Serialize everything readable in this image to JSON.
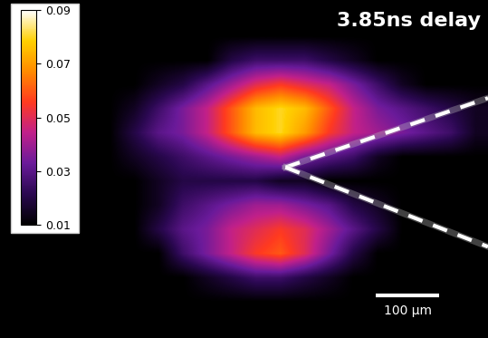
{
  "chart_data": {
    "type": "heatmap",
    "title": "3.85ns delay",
    "xlim": [
      0,
      770
    ],
    "ylim": [
      0,
      533
    ],
    "tick_labels": false,
    "cells": [
      [
        0.01,
        0.01,
        0.01,
        0.01,
        0.01,
        0.01,
        0.01,
        0.01,
        0.01,
        0.01,
        0.01,
        0.01,
        0.01,
        0.01,
        0.01,
        0.01,
        0.01,
        0.01,
        0.01,
        0.01
      ],
      [
        0.01,
        0.01,
        0.01,
        0.01,
        0.01,
        0.01,
        0.01,
        0.01,
        0.01,
        0.01,
        0.01,
        0.01,
        0.01,
        0.01,
        0.01,
        0.01,
        0.01,
        0.01,
        0.01,
        0.01
      ],
      [
        0.01,
        0.01,
        0.01,
        0.01,
        0.01,
        0.01,
        0.01,
        0.01,
        0.01,
        0.02,
        0.025,
        0.025,
        0.025,
        0.02,
        0.015,
        0.01,
        0.01,
        0.01,
        0.01,
        0.01
      ],
      [
        0.01,
        0.01,
        0.01,
        0.01,
        0.01,
        0.01,
        0.015,
        0.02,
        0.03,
        0.04,
        0.05,
        0.055,
        0.05,
        0.045,
        0.035,
        0.025,
        0.015,
        0.01,
        0.01,
        0.01
      ],
      [
        0.01,
        0.01,
        0.01,
        0.01,
        0.01,
        0.015,
        0.025,
        0.035,
        0.045,
        0.06,
        0.075,
        0.08,
        0.075,
        0.06,
        0.045,
        0.035,
        0.03,
        0.025,
        0.02,
        0.015
      ],
      [
        0.01,
        0.01,
        0.01,
        0.01,
        0.01,
        0.02,
        0.03,
        0.035,
        0.045,
        0.06,
        0.075,
        0.08,
        0.07,
        0.055,
        0.045,
        0.04,
        0.035,
        0.03,
        0.025,
        0.015
      ],
      [
        0.01,
        0.01,
        0.01,
        0.01,
        0.01,
        0.015,
        0.02,
        0.025,
        0.03,
        0.035,
        0.04,
        0.045,
        0.035,
        0.03,
        0.025,
        0.015,
        0.01,
        0.01,
        0.01,
        0.01
      ],
      [
        0.01,
        0.01,
        0.01,
        0.01,
        0.01,
        0.01,
        0.015,
        0.02,
        0.02,
        0.02,
        0.02,
        0.015,
        0.015,
        0.01,
        0.01,
        0.01,
        0.01,
        0.01,
        0.01,
        0.01
      ],
      [
        0.01,
        0.01,
        0.01,
        0.01,
        0.01,
        0.01,
        0.015,
        0.025,
        0.03,
        0.035,
        0.04,
        0.04,
        0.035,
        0.03,
        0.02,
        0.015,
        0.01,
        0.01,
        0.01,
        0.01
      ],
      [
        0.01,
        0.01,
        0.01,
        0.01,
        0.01,
        0.01,
        0.02,
        0.03,
        0.035,
        0.045,
        0.05,
        0.055,
        0.05,
        0.04,
        0.03,
        0.02,
        0.01,
        0.01,
        0.01,
        0.01
      ],
      [
        0.01,
        0.01,
        0.01,
        0.01,
        0.01,
        0.01,
        0.01,
        0.025,
        0.035,
        0.045,
        0.055,
        0.06,
        0.05,
        0.035,
        0.02,
        0.01,
        0.01,
        0.01,
        0.01,
        0.01
      ],
      [
        0.01,
        0.01,
        0.01,
        0.01,
        0.01,
        0.01,
        0.01,
        0.01,
        0.015,
        0.02,
        0.025,
        0.025,
        0.02,
        0.015,
        0.01,
        0.01,
        0.01,
        0.01,
        0.01,
        0.01
      ],
      [
        0.01,
        0.01,
        0.01,
        0.01,
        0.01,
        0.01,
        0.01,
        0.01,
        0.01,
        0.01,
        0.01,
        0.01,
        0.01,
        0.01,
        0.01,
        0.01,
        0.01,
        0.01,
        0.01,
        0.01
      ],
      [
        0.01,
        0.01,
        0.01,
        0.01,
        0.01,
        0.01,
        0.01,
        0.01,
        0.01,
        0.01,
        0.01,
        0.01,
        0.01,
        0.01,
        0.01,
        0.01,
        0.01,
        0.01,
        0.01,
        0.01
      ]
    ],
    "colorbar": {
      "range": [
        0.01,
        0.09
      ],
      "ticks": [
        0.01,
        0.03,
        0.05,
        0.07,
        0.09
      ]
    },
    "scale_bar": {
      "length": 100,
      "label": "100 µm"
    }
  }
}
